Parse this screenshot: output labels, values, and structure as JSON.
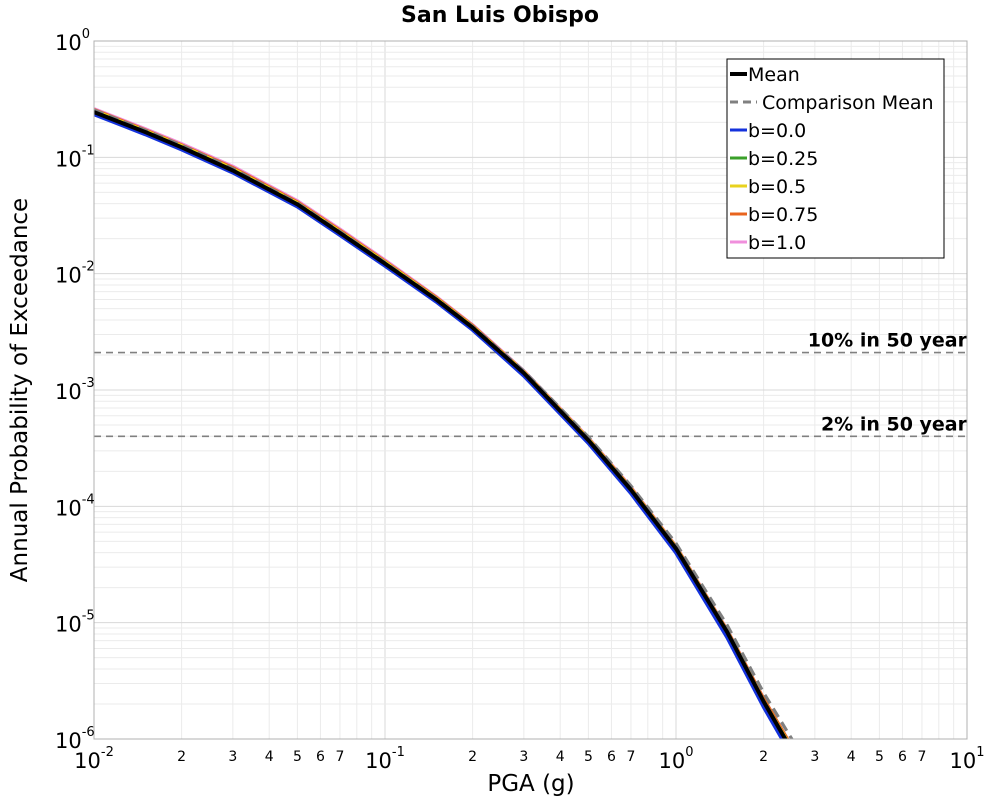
{
  "chart_data": {
    "type": "line",
    "title": "San Luis Obispo",
    "xlabel": "PGA (g)",
    "ylabel": "Annual Probability of Exceedance",
    "xscale": "log",
    "yscale": "log",
    "xlim": [
      0.01,
      10
    ],
    "ylim": [
      1e-06,
      1
    ],
    "grid": true,
    "legend_position": "top-right",
    "x_major_ticks": [
      {
        "value": 0.01,
        "base": "10",
        "exp": "-2"
      },
      {
        "value": 0.1,
        "base": "10",
        "exp": "-1"
      },
      {
        "value": 1,
        "base": "10",
        "exp": "0"
      },
      {
        "value": 10,
        "base": "10",
        "exp": "1"
      }
    ],
    "x_minor_labels": [
      "2",
      "3",
      "4",
      "5",
      "6",
      "7"
    ],
    "y_major_ticks": [
      {
        "value": 1,
        "base": "10",
        "exp": "0"
      },
      {
        "value": 0.1,
        "base": "10",
        "exp": "-1"
      },
      {
        "value": 0.01,
        "base": "10",
        "exp": "-2"
      },
      {
        "value": 0.001,
        "base": "10",
        "exp": "-3"
      },
      {
        "value": 0.0001,
        "base": "10",
        "exp": "-4"
      },
      {
        "value": 1e-05,
        "base": "10",
        "exp": "-5"
      },
      {
        "value": 1e-06,
        "base": "10",
        "exp": "-6"
      }
    ],
    "reference_lines": [
      {
        "label": "10% in 50 year",
        "y": 0.0021,
        "color": "#808080"
      },
      {
        "label": "2% in 50 year",
        "y": 0.0004,
        "color": "#808080"
      }
    ],
    "series": [
      {
        "name": "b=1.0",
        "color": "#f08fdc",
        "style": "solid",
        "x": [
          0.01,
          0.015,
          0.02,
          0.03,
          0.05,
          0.07,
          0.1,
          0.15,
          0.2,
          0.3,
          0.5,
          0.7,
          1.0,
          1.5,
          2.0,
          2.5
        ],
        "y": [
          0.26,
          0.175,
          0.13,
          0.083,
          0.042,
          0.024,
          0.013,
          0.0063,
          0.0036,
          0.00145,
          0.000385,
          0.000145,
          4.5e-05,
          8.6e-06,
          2.2e-06,
          8.5e-07
        ]
      },
      {
        "name": "b=0.75",
        "color": "#e8641e",
        "style": "solid",
        "x": [
          0.01,
          0.015,
          0.02,
          0.03,
          0.05,
          0.07,
          0.1,
          0.15,
          0.2,
          0.3,
          0.5,
          0.7,
          1.0,
          1.5,
          2.0,
          2.5
        ],
        "y": [
          0.255,
          0.171,
          0.127,
          0.081,
          0.041,
          0.0234,
          0.0127,
          0.0062,
          0.00355,
          0.00143,
          0.00038,
          0.000143,
          4.45e-05,
          8.5e-06,
          2.2e-06,
          8.5e-07
        ]
      },
      {
        "name": "b=0.5",
        "color": "#e8d21e",
        "style": "solid",
        "x": [
          0.01,
          0.015,
          0.02,
          0.03,
          0.05,
          0.07,
          0.1,
          0.15,
          0.2,
          0.3,
          0.5,
          0.7,
          1.0,
          1.5,
          2.0,
          2.5
        ],
        "y": [
          0.25,
          0.168,
          0.125,
          0.079,
          0.0402,
          0.0229,
          0.0125,
          0.0061,
          0.0035,
          0.00142,
          0.000377,
          0.000141,
          4.4e-05,
          8.4e-06,
          2.1e-06,
          8.2e-07
        ]
      },
      {
        "name": "b=0.25",
        "color": "#3aa02a",
        "style": "solid",
        "x": [
          0.01,
          0.015,
          0.02,
          0.03,
          0.05,
          0.07,
          0.1,
          0.15,
          0.2,
          0.3,
          0.5,
          0.7,
          1.0,
          1.5,
          2.0,
          2.5
        ],
        "y": [
          0.245,
          0.165,
          0.122,
          0.077,
          0.0394,
          0.0224,
          0.0122,
          0.00598,
          0.00343,
          0.00139,
          0.000368,
          0.000138,
          4.3e-05,
          8.2e-06,
          2.1e-06,
          8e-07
        ]
      },
      {
        "name": "b=0.0",
        "color": "#1432dc",
        "style": "solid",
        "x": [
          0.01,
          0.015,
          0.02,
          0.03,
          0.05,
          0.07,
          0.1,
          0.15,
          0.2,
          0.3,
          0.5,
          0.7,
          1.0,
          1.5,
          2.0,
          2.5
        ],
        "y": [
          0.235,
          0.158,
          0.117,
          0.074,
          0.0378,
          0.0215,
          0.0117,
          0.00575,
          0.0033,
          0.00133,
          0.00035,
          0.00013,
          4e-05,
          7.5e-06,
          1.9e-06,
          7.2e-07
        ]
      },
      {
        "name": "Comparison Mean",
        "color": "#808080",
        "style": "dashed",
        "x": [
          0.01,
          0.015,
          0.02,
          0.03,
          0.05,
          0.07,
          0.1,
          0.15,
          0.2,
          0.3,
          0.5,
          0.7,
          1.0,
          1.5,
          2.0,
          2.5,
          2.7
        ],
        "y": [
          0.255,
          0.171,
          0.127,
          0.08,
          0.0405,
          0.023,
          0.0125,
          0.0061,
          0.00352,
          0.00146,
          0.000395,
          0.00015,
          4.8e-05,
          9.5e-06,
          2.5e-06,
          1e-06,
          7.5e-07
        ]
      },
      {
        "name": "Mean",
        "color": "#000000",
        "style": "solid",
        "x": [
          0.01,
          0.015,
          0.02,
          0.03,
          0.05,
          0.07,
          0.1,
          0.15,
          0.2,
          0.3,
          0.5,
          0.7,
          1.0,
          1.5,
          2.0,
          2.5
        ],
        "y": [
          0.245,
          0.165,
          0.122,
          0.077,
          0.0394,
          0.0224,
          0.0122,
          0.006,
          0.00344,
          0.0014,
          0.00037,
          0.000139,
          4.33e-05,
          8.3e-06,
          2.1e-06,
          8e-07
        ]
      }
    ],
    "legend": [
      {
        "name": "Mean",
        "color": "#000000",
        "style": "solid"
      },
      {
        "name": "Comparison Mean",
        "color": "#808080",
        "style": "dashed"
      },
      {
        "name": "b=0.0",
        "color": "#1432dc",
        "style": "solid"
      },
      {
        "name": "b=0.25",
        "color": "#3aa02a",
        "style": "solid"
      },
      {
        "name": "b=0.5",
        "color": "#e8d21e",
        "style": "solid"
      },
      {
        "name": "b=0.75",
        "color": "#e8641e",
        "style": "solid"
      },
      {
        "name": "b=1.0",
        "color": "#f08fdc",
        "style": "solid"
      }
    ]
  }
}
